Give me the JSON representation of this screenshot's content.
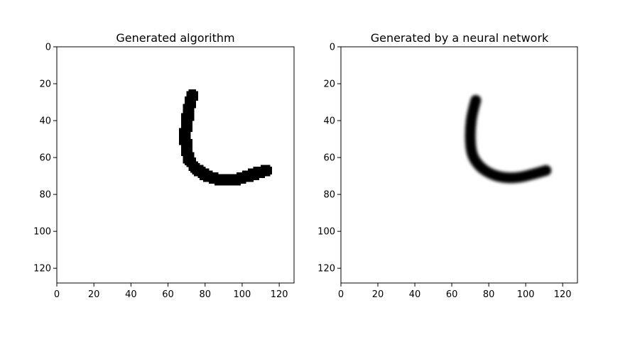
{
  "chart_data": [
    {
      "type": "image",
      "title": "Generated algorithm",
      "xlim": [
        0,
        128
      ],
      "ylim": [
        128,
        0
      ],
      "xticks": [
        0,
        20,
        40,
        60,
        80,
        100,
        120
      ],
      "yticks": [
        0,
        20,
        40,
        60,
        80,
        100,
        120
      ],
      "grid": false,
      "stroke_color": "#000000",
      "stroke_style": "pixelated",
      "stroke_points": [
        [
          73,
          26
        ],
        [
          71,
          34
        ],
        [
          70,
          42
        ],
        [
          69,
          48
        ],
        [
          70,
          55
        ],
        [
          71,
          61
        ],
        [
          75,
          66
        ],
        [
          81,
          70
        ],
        [
          88,
          72
        ],
        [
          96,
          72
        ],
        [
          103,
          70
        ],
        [
          109,
          68
        ],
        [
          113,
          67
        ]
      ]
    },
    {
      "type": "image",
      "title": "Generated by a neural network",
      "xlim": [
        0,
        128
      ],
      "ylim": [
        128,
        0
      ],
      "xticks": [
        0,
        20,
        40,
        60,
        80,
        100,
        120
      ],
      "yticks": [
        0,
        20,
        40,
        60,
        80,
        100,
        120
      ],
      "grid": false,
      "stroke_color": "#000000",
      "stroke_style": "smooth",
      "stroke_points": [
        [
          73,
          29
        ],
        [
          71,
          36
        ],
        [
          70,
          44
        ],
        [
          70,
          52
        ],
        [
          71,
          59
        ],
        [
          75,
          65
        ],
        [
          81,
          69
        ],
        [
          88,
          71
        ],
        [
          96,
          71
        ],
        [
          104,
          69
        ],
        [
          111,
          67
        ]
      ]
    }
  ]
}
